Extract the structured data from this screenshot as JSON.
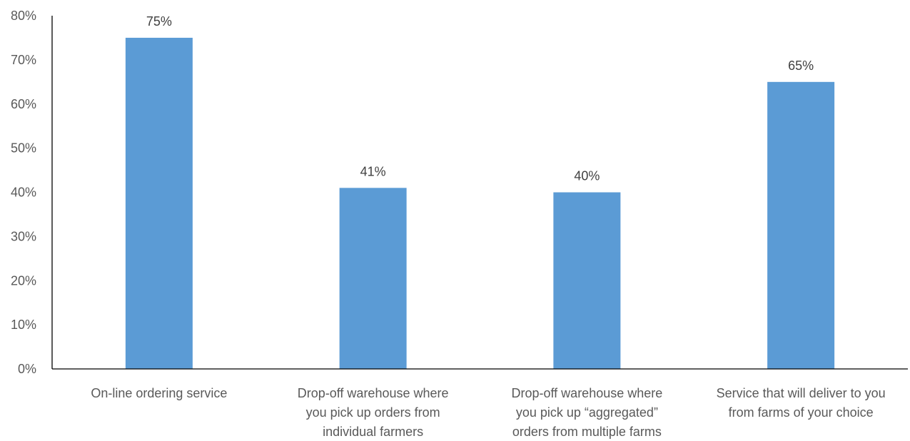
{
  "chart_data": {
    "type": "bar",
    "categories": [
      [
        "On-line ordering service"
      ],
      [
        "Drop-off warehouse where",
        "you pick up orders from",
        "individual farmers"
      ],
      [
        "Drop-off warehouse where",
        "you pick up “aggregated”",
        "orders from multiple farms"
      ],
      [
        "Service that will deliver to you",
        "from farms of your choice"
      ]
    ],
    "values": [
      75,
      41,
      40,
      65
    ],
    "data_labels": [
      "75%",
      "41%",
      "40%",
      "65%"
    ],
    "yticks": [
      0,
      10,
      20,
      30,
      40,
      50,
      60,
      70,
      80
    ],
    "ytick_labels": [
      "0%",
      "10%",
      "20%",
      "30%",
      "40%",
      "50%",
      "60%",
      "70%",
      "80%"
    ],
    "ylim": [
      0,
      80
    ],
    "grid": false,
    "legend": "none",
    "colors": {
      "bar": "#5b9bd5",
      "axis": "#000000"
    }
  }
}
